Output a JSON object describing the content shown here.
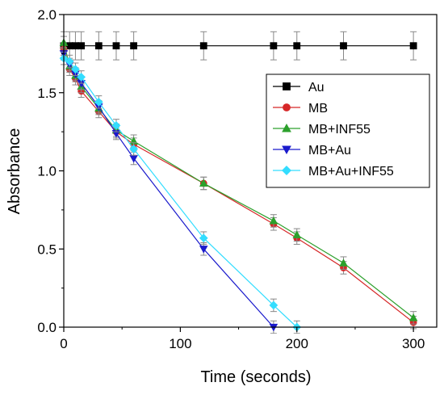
{
  "chart_data": {
    "type": "line",
    "title": "",
    "xlabel": "Time (seconds)",
    "ylabel": "Absorbance",
    "xlim": [
      0,
      320
    ],
    "ylim": [
      0,
      2.0
    ],
    "x_ticks": [
      "0",
      "100",
      "200",
      "300"
    ],
    "y_ticks": [
      "0.0",
      "0.5",
      "1.0",
      "1.5",
      "2.0"
    ],
    "legend_position": "top-right",
    "grid": false,
    "series": [
      {
        "name": "Au",
        "color": "#000000",
        "marker": "square",
        "points": [
          [
            0,
            1.8
          ],
          [
            5,
            1.8
          ],
          [
            10,
            1.8
          ],
          [
            15,
            1.8
          ],
          [
            30,
            1.8
          ],
          [
            45,
            1.8
          ],
          [
            60,
            1.8
          ],
          [
            120,
            1.8
          ],
          [
            180,
            1.8
          ],
          [
            200,
            1.8
          ],
          [
            240,
            1.8
          ],
          [
            300,
            1.8
          ]
        ],
        "error": 0.09
      },
      {
        "name": "MB",
        "color": "#d62728",
        "marker": "circle",
        "points": [
          [
            0,
            1.78
          ],
          [
            5,
            1.65
          ],
          [
            10,
            1.59
          ],
          [
            15,
            1.51
          ],
          [
            30,
            1.38
          ],
          [
            45,
            1.25
          ],
          [
            60,
            1.17
          ],
          [
            120,
            0.92
          ],
          [
            180,
            0.66
          ],
          [
            200,
            0.57
          ],
          [
            240,
            0.38
          ],
          [
            300,
            0.03
          ]
        ],
        "error": 0.04
      },
      {
        "name": "MB+INF55",
        "color": "#2ca02c",
        "marker": "triangle-up",
        "points": [
          [
            0,
            1.82
          ],
          [
            5,
            1.67
          ],
          [
            10,
            1.61
          ],
          [
            15,
            1.54
          ],
          [
            30,
            1.4
          ],
          [
            45,
            1.26
          ],
          [
            60,
            1.19
          ],
          [
            120,
            0.92
          ],
          [
            180,
            0.68
          ],
          [
            200,
            0.59
          ],
          [
            240,
            0.41
          ],
          [
            300,
            0.06
          ]
        ],
        "error": 0.04
      },
      {
        "name": "MB+Au",
        "color": "#1a1acc",
        "marker": "triangle-down",
        "points": [
          [
            0,
            1.75
          ],
          [
            5,
            1.68
          ],
          [
            10,
            1.62
          ],
          [
            15,
            1.56
          ],
          [
            30,
            1.41
          ],
          [
            45,
            1.24
          ],
          [
            60,
            1.08
          ],
          [
            120,
            0.5
          ],
          [
            180,
            0.0
          ]
        ],
        "error": 0.04
      },
      {
        "name": "MB+Au+INF55",
        "color": "#33ddff",
        "marker": "diamond",
        "points": [
          [
            0,
            1.72
          ],
          [
            5,
            1.7
          ],
          [
            10,
            1.65
          ],
          [
            15,
            1.6
          ],
          [
            30,
            1.44
          ],
          [
            45,
            1.29
          ],
          [
            60,
            1.14
          ],
          [
            120,
            0.57
          ],
          [
            180,
            0.14
          ],
          [
            200,
            0.0
          ]
        ],
        "error": 0.04
      }
    ]
  }
}
